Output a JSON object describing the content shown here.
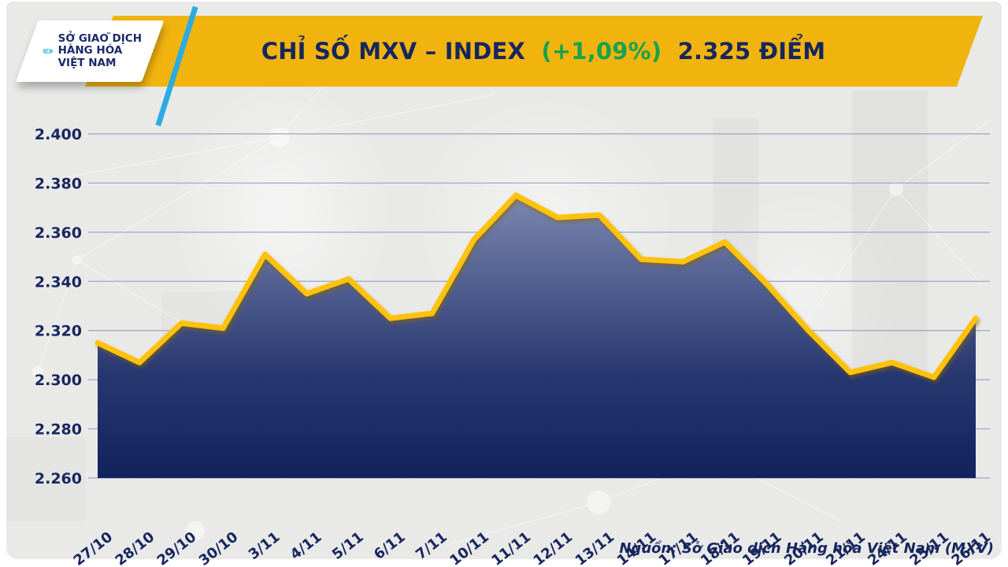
{
  "header": {
    "logo": {
      "icon": "mxv-chevrons-icon",
      "org_lines": [
        "SỞ GIAO DỊCH",
        "HÀNG HÓA",
        "VIỆT NAM"
      ],
      "trademark": "™"
    },
    "title": {
      "name": "CHỈ SỐ MXV – INDEX",
      "change": "(+1,09%)",
      "value": "2.325 ĐIỂM"
    }
  },
  "colors": {
    "banner_yellow": "#F1B40F",
    "line_yellow": "#FFC20D",
    "navy_text": "#17265E",
    "green_change": "#17A24D",
    "stripe_blue": "#2AACE3",
    "background_gray": "#E9E9E8",
    "gridline": "#9AA5C4",
    "fill_gradient_top": "#9AA3C0",
    "fill_gradient_bottom": "#12225E"
  },
  "chart_data": {
    "type": "area",
    "title": "CHỈ SỐ MXV – INDEX (+1,09%) 2.325 ĐIỂM",
    "categories": [
      "27/10",
      "28/10",
      "29/10",
      "30/10",
      "3/11",
      "4/11",
      "5/11",
      "6/11",
      "7/11",
      "10/11",
      "11/11",
      "12/11",
      "13/11",
      "14/11",
      "17/11",
      "18/11",
      "19/11",
      "20/11",
      "21/11",
      "24/11",
      "25/11",
      "26/11"
    ],
    "values": [
      2315,
      2307,
      2323,
      2321,
      2351,
      2335,
      2341,
      2325,
      2327,
      2357,
      2375,
      2366,
      2367,
      2349,
      2348,
      2356,
      2339,
      2320,
      2303,
      2307,
      2301,
      2325
    ],
    "xlabel": "",
    "ylabel": "",
    "ylim": [
      2260,
      2400
    ],
    "yticks": {
      "values": [
        2400,
        2380,
        2360,
        2340,
        2320,
        2300,
        2280,
        2260
      ],
      "labels": [
        "2.400",
        "2.380",
        "2.360",
        "2.340",
        "2.320",
        "2.300",
        "2.280",
        "2.260"
      ]
    },
    "grid": true,
    "legend": "none",
    "last_point_label": "2.325"
  },
  "footer": {
    "source": "Nguồn: Sở Giao dịch Hàng hóa Việt Nam (MXV)"
  }
}
